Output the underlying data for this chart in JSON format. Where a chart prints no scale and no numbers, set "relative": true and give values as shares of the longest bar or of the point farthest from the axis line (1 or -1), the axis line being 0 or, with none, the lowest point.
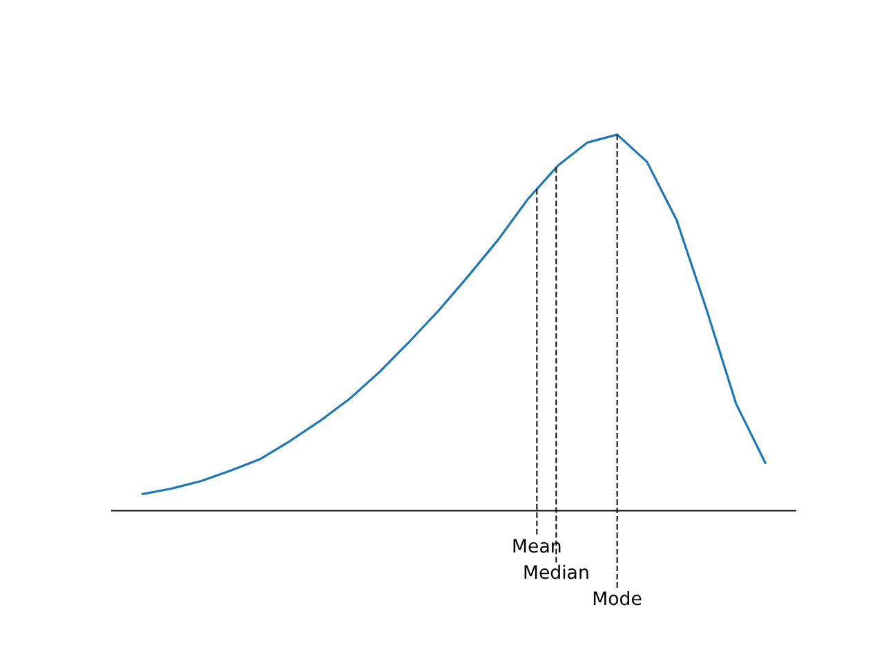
{
  "chart_data": {
    "type": "line",
    "relative": true,
    "line_style": "solid",
    "categories": [
      null,
      null,
      null,
      null,
      null,
      null,
      null,
      null,
      null,
      null,
      null,
      null,
      null,
      null,
      null,
      null,
      null,
      null,
      null,
      null,
      null,
      null
    ],
    "series": [
      {
        "color": "#1f77b4",
        "values": [
          0.044,
          0.059,
          0.079,
          0.107,
          0.138,
          0.186,
          0.239,
          0.298,
          0.369,
          0.449,
          0.533,
          0.625,
          0.721,
          0.829,
          0.917,
          0.979,
          1,
          0.928,
          0.773,
          0.537,
          0.285,
          0.125
        ]
      }
    ],
    "annotations": [
      "Mean",
      "Median",
      "Mode"
    ]
  }
}
